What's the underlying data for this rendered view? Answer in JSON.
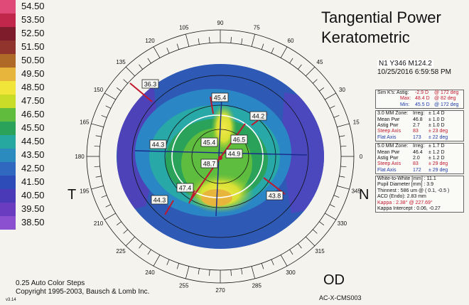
{
  "title_line1": "Tangential Power",
  "title_line2": "Keratometric",
  "patient_id": "N1 Y346 M124.2",
  "exam_datetime": "10/25/2016 6:59:58 PM",
  "scale": {
    "values": [
      "54.50",
      "53.50",
      "52.50",
      "51.50",
      "50.50",
      "49.50",
      "48.50",
      "47.50",
      "46.50",
      "45.50",
      "44.50",
      "43.50",
      "42.50",
      "41.50",
      "40.50",
      "39.50",
      "38.50"
    ],
    "colors": [
      "#e04a78",
      "#c0274a",
      "#7e1c2c",
      "#92342e",
      "#b06a28",
      "#e7b53c",
      "#f2e53a",
      "#c8dc28",
      "#5fbc3c",
      "#2ba25a",
      "#26a7a0",
      "#2c8bbe",
      "#3068c0",
      "#2e4cb8",
      "#4a3ab8",
      "#6a3cc0",
      "#8a50d0"
    ],
    "steps_note": "0.25 Auto Color Steps",
    "copyright": "Copyright 1995-2003, Bausch & Lomb Inc.",
    "version": "v3.14"
  },
  "degree_labels": [
    "0",
    "15",
    "30",
    "45",
    "60",
    "75",
    "90",
    "105",
    "120",
    "135",
    "150",
    "165",
    "180",
    "195",
    "210",
    "225",
    "240",
    "255",
    "270",
    "285",
    "300",
    "315",
    "330",
    "345"
  ],
  "map_values": {
    "v363": "36.3",
    "v454": "45.4",
    "v442": "44.2",
    "v443": "44.3",
    "v454b": "45.4",
    "v465": "46.5",
    "v449": "44.9",
    "v487": "48.7",
    "v474": "47.4",
    "v443b": "44.3",
    "v438": "43.8"
  },
  "sim_k": {
    "astig_label": "Sim K's:  Astig:",
    "astig_val": "-2.9 D",
    "astig_deg": "@ 172 deg",
    "max_label": "Max:",
    "max_val": "48.4 D",
    "max_deg": "@ 82 deg",
    "min_label": "Min:",
    "min_val": "45.5 D",
    "min_deg": "@ 172 deg"
  },
  "zone3": {
    "r1": [
      "3.0 MM Zone:",
      "Irreg:",
      "± 1.4 D"
    ],
    "r2": [
      "Mean Pwr",
      "46.8",
      "± 1.0 D"
    ],
    "r3": [
      "Astig Pwr",
      "2.7",
      "± 1.0 D"
    ],
    "r4": [
      "Steep Axis",
      "83",
      "± 23 deg"
    ],
    "r5": [
      "Flat Axis",
      "173",
      "± 22 deg"
    ]
  },
  "zone5": {
    "r1": [
      "5.0 MM Zone:",
      "Irreg:",
      "± 1.7 D"
    ],
    "r2": [
      "Mean Pwr",
      "46.4",
      "± 1.2 D"
    ],
    "r3": [
      "Astig Pwr",
      "2.0",
      "± 1.2 D"
    ],
    "r4": [
      "Steep Axis",
      "83",
      "± 29 deg"
    ],
    "r5": [
      "Flat Axis",
      "172",
      "± 29 deg"
    ]
  },
  "misc": {
    "m1": "White-to-White [mm] :  11.1",
    "m2": "Pupil Diameter [mm] :  3.9",
    "m3": "Thinnest : 586 um @ ( 0.1, -0.5 )",
    "m4": "ACD (Endo):  2.83 mm",
    "m5": "Kappa : 2.38° @ 227.69°",
    "m6": "Kappa Intercept : 0.06, -0.27"
  },
  "dir_temporal": "T",
  "dir_nasal": "N",
  "eye": "OD",
  "model": "AC-X-CMS003"
}
